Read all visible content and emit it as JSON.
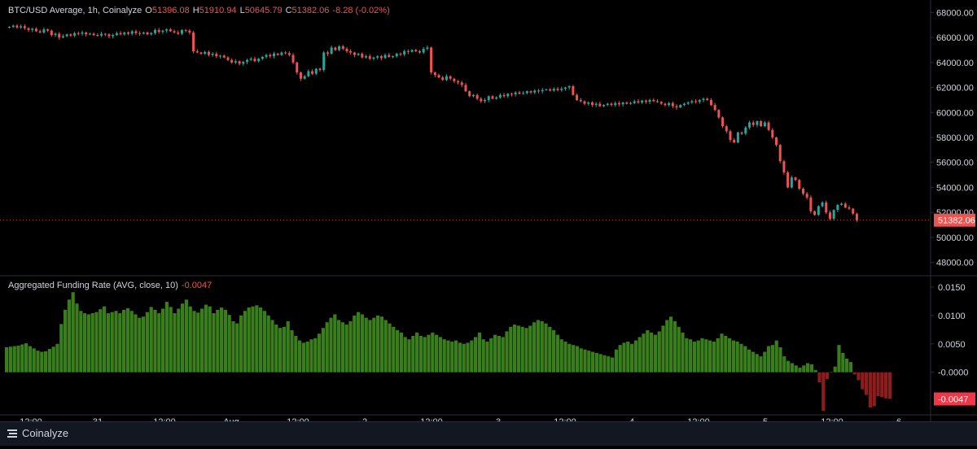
{
  "main_legend": {
    "symbol": "BTC/USD Average, 1h, Coinalyze",
    "open_label": "O",
    "open": "51396.08",
    "high_label": "H",
    "high": "51910.94",
    "low_label": "L",
    "low": "50645.79",
    "close_label": "C",
    "close": "51382.06",
    "change": "-8.28 (-0.02%)"
  },
  "funding_legend": {
    "title": "Aggregated Funding Rate (AVG, close, 10)",
    "value": "-0.0047"
  },
  "price_axis": {
    "ticks": [
      "68000.00",
      "66000.00",
      "64000.00",
      "62000.00",
      "60000.00",
      "58000.00",
      "56000.00",
      "54000.00",
      "52000.00",
      "50000.00",
      "48000.00"
    ],
    "last_price": "51382.06"
  },
  "funding_axis": {
    "ticks": [
      "0.0150",
      "0.0100",
      "0.0050",
      "-0.0000"
    ],
    "last_value": "-0.0047"
  },
  "time_axis": {
    "labels": [
      "12:00",
      "31",
      "12:00",
      "Aug",
      "12:00",
      "2",
      "12:00",
      "3",
      "12:00",
      "4",
      "12:00",
      "5",
      "12:00",
      "6"
    ]
  },
  "brand": {
    "name": "Coinalyze"
  },
  "colors": {
    "bg": "#000000",
    "up": "#26a69a",
    "down": "#ef5350",
    "fund_pos": "#3a7d1b",
    "fund_neg": "#8b1d1d",
    "grid": "#2a2e39",
    "text": "#d1d4dc"
  },
  "chart_data": [
    {
      "type": "candlestick",
      "title": "BTC/USD Average, 1h, Coinalyze",
      "ylim": [
        47000,
        69000
      ],
      "x_start": "Jul 30 10:00",
      "interval": "1h",
      "closes": [
        66850,
        66950,
        66800,
        66900,
        66750,
        66600,
        66700,
        66500,
        66400,
        66650,
        66550,
        66200,
        66300,
        66000,
        66100,
        66250,
        66150,
        66350,
        66300,
        66400,
        66250,
        66300,
        66200,
        66150,
        66300,
        66250,
        66100,
        66200,
        66350,
        66250,
        66400,
        66300,
        66500,
        66350,
        66300,
        66400,
        66250,
        66350,
        66600,
        66450,
        66550,
        66650,
        66500,
        66400,
        66300,
        66600,
        66550,
        66400,
        64900,
        64800,
        64700,
        64850,
        64600,
        64700,
        64500,
        64550,
        64400,
        64200,
        64000,
        64100,
        63900,
        64050,
        64200,
        64300,
        64100,
        64300,
        64450,
        64600,
        64500,
        64700,
        64600,
        64800,
        64750,
        64600,
        64000,
        63200,
        62700,
        62900,
        63300,
        63100,
        63500,
        63400,
        64800,
        64700,
        65200,
        65000,
        65300,
        65100,
        64900,
        64800,
        64600,
        64700,
        64400,
        64500,
        64300,
        64400,
        64500,
        64350,
        64600,
        64450,
        64500,
        64700,
        64650,
        64900,
        64850,
        65000,
        64900,
        64800,
        65100,
        65200,
        63200,
        63000,
        62800,
        62600,
        62900,
        62700,
        62500,
        62400,
        62200,
        61700,
        61300,
        61400,
        61100,
        60900,
        61000,
        61300,
        61100,
        61200,
        61400,
        61300,
        61500,
        61450,
        61600,
        61500,
        61550,
        61700,
        61600,
        61750,
        61700,
        61800,
        61850,
        61750,
        61900,
        61800,
        61900,
        62000,
        62100,
        61400,
        61000,
        60900,
        60700,
        60800,
        60600,
        60700,
        60500,
        60600,
        60700,
        60600,
        60750,
        60650,
        60800,
        60700,
        60750,
        60900,
        60800,
        60950,
        60850,
        61000,
        60900,
        60850,
        60700,
        60600,
        60750,
        60500,
        60400,
        60600,
        60700,
        60800,
        60900,
        60850,
        61000,
        61100,
        61000,
        60600,
        60200,
        59600,
        58900,
        58500,
        57800,
        57600,
        58400,
        58300,
        58800,
        59200,
        59000,
        59300,
        58900,
        59200,
        58600,
        58000,
        57400,
        56100,
        55200,
        54000,
        54800,
        54600,
        53900,
        53500,
        53200,
        52100,
        51800,
        52500,
        52800,
        52000,
        51500,
        52200,
        52600,
        52700,
        52400,
        52300,
        51900,
        51382
      ]
    },
    {
      "type": "bar",
      "title": "Aggregated Funding Rate (AVG, close, 10)",
      "ylim": [
        -0.0075,
        0.017
      ],
      "values": [
        0.0044,
        0.0045,
        0.0046,
        0.0047,
        0.0049,
        0.0051,
        0.0046,
        0.0042,
        0.0038,
        0.0036,
        0.0037,
        0.0041,
        0.0045,
        0.005,
        0.0085,
        0.011,
        0.0128,
        0.0141,
        0.0121,
        0.0108,
        0.0104,
        0.0102,
        0.0104,
        0.0106,
        0.0111,
        0.0116,
        0.0104,
        0.0106,
        0.0108,
        0.0104,
        0.011,
        0.0113,
        0.0108,
        0.0102,
        0.0096,
        0.0098,
        0.0106,
        0.0115,
        0.011,
        0.0104,
        0.0112,
        0.0124,
        0.0115,
        0.0104,
        0.0112,
        0.0121,
        0.0128,
        0.0116,
        0.0108,
        0.0105,
        0.0112,
        0.0119,
        0.0116,
        0.0104,
        0.011,
        0.0114,
        0.011,
        0.0101,
        0.009,
        0.0086,
        0.01,
        0.0108,
        0.0114,
        0.0116,
        0.0118,
        0.0114,
        0.0108,
        0.01,
        0.0092,
        0.0084,
        0.0078,
        0.008,
        0.009,
        0.0074,
        0.0064,
        0.0056,
        0.0052,
        0.0054,
        0.0058,
        0.006,
        0.0068,
        0.0078,
        0.0088,
        0.0096,
        0.0102,
        0.0092,
        0.0088,
        0.0084,
        0.009,
        0.01,
        0.0106,
        0.0102,
        0.0096,
        0.0092,
        0.0096,
        0.01,
        0.0098,
        0.0092,
        0.0086,
        0.008,
        0.0074,
        0.007,
        0.0062,
        0.0058,
        0.0064,
        0.007,
        0.0064,
        0.0062,
        0.0066,
        0.007,
        0.0066,
        0.0062,
        0.0058,
        0.0056,
        0.0054,
        0.0056,
        0.0052,
        0.005,
        0.0052,
        0.0056,
        0.0062,
        0.007,
        0.0058,
        0.0054,
        0.006,
        0.0066,
        0.0064,
        0.0062,
        0.0072,
        0.008,
        0.0084,
        0.0082,
        0.008,
        0.0078,
        0.0082,
        0.0088,
        0.0092,
        0.009,
        0.0086,
        0.008,
        0.0074,
        0.0066,
        0.0058,
        0.0054,
        0.005,
        0.0048,
        0.0046,
        0.0042,
        0.004,
        0.0038,
        0.0036,
        0.0034,
        0.0032,
        0.003,
        0.0028,
        0.0026,
        0.004,
        0.0048,
        0.0052,
        0.0054,
        0.005,
        0.0056,
        0.0062,
        0.0068,
        0.0074,
        0.007,
        0.0066,
        0.0072,
        0.0082,
        0.0092,
        0.0098,
        0.009,
        0.008,
        0.007,
        0.006,
        0.0058,
        0.0054,
        0.0056,
        0.006,
        0.0058,
        0.0056,
        0.0054,
        0.006,
        0.0068,
        0.0064,
        0.006,
        0.0056,
        0.0054,
        0.005,
        0.0046,
        0.004,
        0.0036,
        0.0032,
        0.0028,
        0.0036,
        0.0046,
        0.0048,
        0.0056,
        0.0044,
        0.0028,
        0.002,
        0.0016,
        0.0012,
        0.0008,
        0.0012,
        0.0016,
        0.0014,
        0.0004,
        -0.0018,
        -0.0068,
        -0.0012,
        0.0,
        0.001,
        0.0048,
        0.0034,
        0.0024,
        0.0018,
        -0.0004,
        -0.0014,
        -0.003,
        -0.004,
        -0.0062,
        -0.006,
        -0.0042,
        -0.0044,
        -0.0046,
        -0.0047
      ]
    }
  ]
}
